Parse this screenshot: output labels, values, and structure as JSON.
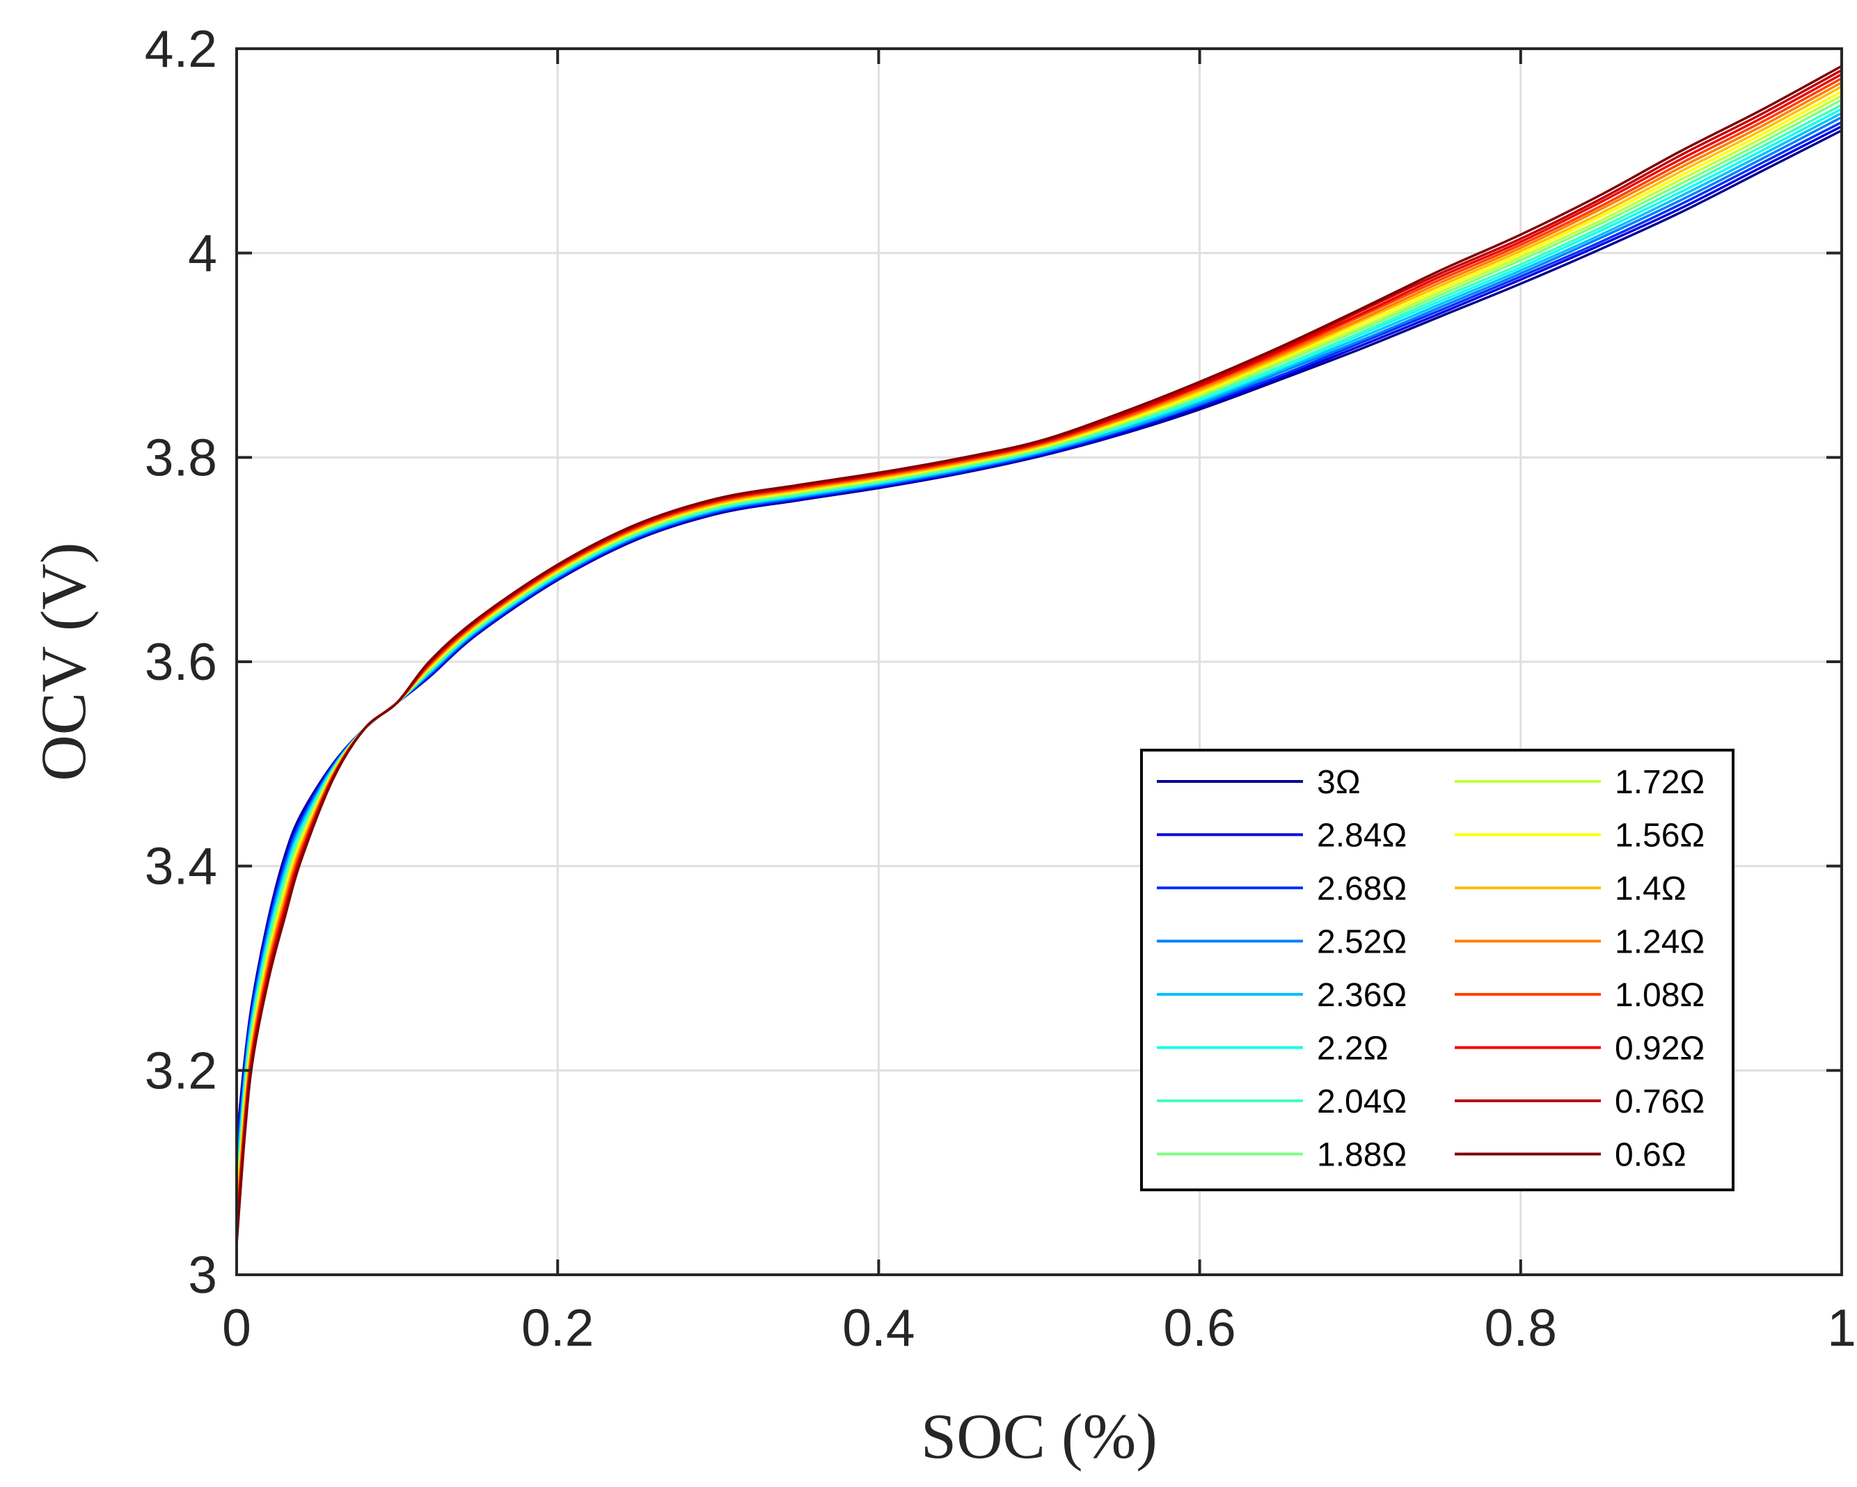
{
  "chart_data": {
    "type": "line",
    "xlabel": "SOC (%)",
    "ylabel": "OCV (V)",
    "xlim": [
      0,
      1
    ],
    "ylim": [
      3,
      4.2
    ],
    "grid": true,
    "legend_position": "bottom-right",
    "legend_columns": 2,
    "x_ticks": [
      0,
      0.2,
      0.4,
      0.6,
      0.8,
      1
    ],
    "x_tick_labels": [
      "0",
      "0.2",
      "0.4",
      "0.6",
      "0.8",
      "1"
    ],
    "y_ticks": [
      3,
      3.2,
      3.4,
      3.6,
      3.8,
      4,
      4.2
    ],
    "y_tick_labels": [
      "3",
      "3.2",
      "3.4",
      "3.6",
      "3.8",
      "4",
      "4.2"
    ],
    "x": [
      0,
      0.005,
      0.01,
      0.02,
      0.03,
      0.04,
      0.06,
      0.08,
      0.1,
      0.12,
      0.15,
      0.2,
      0.25,
      0.3,
      0.35,
      0.4,
      0.45,
      0.5,
      0.55,
      0.6,
      0.65,
      0.7,
      0.75,
      0.8,
      0.85,
      0.9,
      0.95,
      1.0
    ],
    "series": [
      {
        "name": "3Ω",
        "color": "#00008F",
        "values": [
          3.13,
          3.21,
          3.27,
          3.35,
          3.41,
          3.45,
          3.5,
          3.535,
          3.56,
          3.585,
          3.627,
          3.68,
          3.72,
          3.745,
          3.758,
          3.77,
          3.784,
          3.801,
          3.822,
          3.847,
          3.876,
          3.906,
          3.938,
          3.97,
          4.004,
          4.04,
          4.08,
          4.12
        ]
      },
      {
        "name": "2.84Ω",
        "color": "#0000DF",
        "values": [
          3.12,
          3.205,
          3.266,
          3.346,
          3.406,
          3.447,
          3.499,
          3.535,
          3.56,
          3.586,
          3.628,
          3.681,
          3.721,
          3.746,
          3.759,
          3.771,
          3.785,
          3.802,
          3.823,
          3.849,
          3.878,
          3.909,
          3.941,
          3.974,
          4.008,
          4.044,
          4.084,
          4.124
        ]
      },
      {
        "name": "2.68Ω",
        "color": "#0030FF",
        "values": [
          3.11,
          3.2,
          3.262,
          3.342,
          3.402,
          3.444,
          3.498,
          3.535,
          3.56,
          3.587,
          3.629,
          3.682,
          3.722,
          3.747,
          3.76,
          3.772,
          3.786,
          3.803,
          3.825,
          3.851,
          3.88,
          3.912,
          3.944,
          3.977,
          4.011,
          4.048,
          4.088,
          4.128
        ]
      },
      {
        "name": "2.52Ω",
        "color": "#0080FF",
        "values": [
          3.1,
          3.195,
          3.258,
          3.338,
          3.398,
          3.441,
          3.497,
          3.535,
          3.56,
          3.588,
          3.63,
          3.683,
          3.723,
          3.748,
          3.761,
          3.773,
          3.787,
          3.804,
          3.826,
          3.852,
          3.883,
          3.914,
          3.947,
          3.98,
          4.015,
          4.052,
          4.092,
          4.133
        ]
      },
      {
        "name": "2.36Ω",
        "color": "#00BFFF",
        "values": [
          3.09,
          3.19,
          3.254,
          3.334,
          3.394,
          3.438,
          3.496,
          3.535,
          3.56,
          3.589,
          3.631,
          3.684,
          3.724,
          3.749,
          3.762,
          3.774,
          3.788,
          3.805,
          3.827,
          3.854,
          3.885,
          3.917,
          3.95,
          3.983,
          4.018,
          4.056,
          4.096,
          4.137
        ]
      },
      {
        "name": "2.2Ω",
        "color": "#10FFEF",
        "values": [
          3.08,
          3.185,
          3.25,
          3.33,
          3.39,
          3.435,
          3.495,
          3.535,
          3.56,
          3.59,
          3.632,
          3.685,
          3.725,
          3.75,
          3.763,
          3.775,
          3.789,
          3.806,
          3.829,
          3.856,
          3.887,
          3.92,
          3.953,
          3.986,
          4.022,
          4.06,
          4.1,
          4.141
        ]
      },
      {
        "name": "2.04Ω",
        "color": "#40FFBF",
        "values": [
          3.075,
          3.18,
          3.246,
          3.326,
          3.386,
          3.432,
          3.494,
          3.535,
          3.56,
          3.591,
          3.633,
          3.686,
          3.726,
          3.751,
          3.764,
          3.776,
          3.79,
          3.807,
          3.83,
          3.858,
          3.889,
          3.922,
          3.956,
          3.989,
          4.025,
          4.064,
          4.104,
          4.145
        ]
      },
      {
        "name": "1.88Ω",
        "color": "#80FF80",
        "values": [
          3.07,
          3.175,
          3.242,
          3.322,
          3.382,
          3.429,
          3.493,
          3.535,
          3.56,
          3.592,
          3.634,
          3.687,
          3.727,
          3.752,
          3.765,
          3.777,
          3.791,
          3.808,
          3.832,
          3.86,
          3.892,
          3.925,
          3.959,
          3.993,
          4.029,
          4.068,
          4.108,
          4.15
        ]
      },
      {
        "name": "1.72Ω",
        "color": "#BFFF40",
        "values": [
          3.065,
          3.17,
          3.238,
          3.318,
          3.378,
          3.426,
          3.492,
          3.535,
          3.56,
          3.593,
          3.635,
          3.688,
          3.728,
          3.753,
          3.766,
          3.778,
          3.792,
          3.809,
          3.833,
          3.861,
          3.894,
          3.927,
          3.962,
          3.996,
          4.032,
          4.072,
          4.112,
          4.154
        ]
      },
      {
        "name": "1.56Ω",
        "color": "#FFFF00",
        "values": [
          3.06,
          3.165,
          3.234,
          3.314,
          3.374,
          3.423,
          3.491,
          3.535,
          3.56,
          3.594,
          3.636,
          3.689,
          3.729,
          3.754,
          3.767,
          3.779,
          3.793,
          3.81,
          3.834,
          3.863,
          3.896,
          3.93,
          3.965,
          3.999,
          4.036,
          4.076,
          4.116,
          4.158
        ]
      },
      {
        "name": "1.4Ω",
        "color": "#FFBF00",
        "values": [
          3.055,
          3.16,
          3.23,
          3.31,
          3.37,
          3.42,
          3.49,
          3.535,
          3.56,
          3.595,
          3.637,
          3.69,
          3.73,
          3.755,
          3.768,
          3.78,
          3.794,
          3.811,
          3.836,
          3.865,
          3.898,
          3.933,
          3.968,
          4.002,
          4.039,
          4.08,
          4.12,
          4.163
        ]
      },
      {
        "name": "1.24Ω",
        "color": "#FF8000",
        "values": [
          3.05,
          3.155,
          3.226,
          3.306,
          3.366,
          3.417,
          3.489,
          3.535,
          3.56,
          3.596,
          3.638,
          3.691,
          3.731,
          3.756,
          3.769,
          3.781,
          3.795,
          3.812,
          3.837,
          3.867,
          3.9,
          3.935,
          3.971,
          4.005,
          4.043,
          4.084,
          4.124,
          4.167
        ]
      },
      {
        "name": "1.08Ω",
        "color": "#FF4000",
        "values": [
          3.045,
          3.15,
          3.222,
          3.302,
          3.362,
          3.414,
          3.488,
          3.535,
          3.56,
          3.597,
          3.639,
          3.692,
          3.732,
          3.757,
          3.77,
          3.782,
          3.796,
          3.813,
          3.838,
          3.869,
          3.902,
          3.938,
          3.974,
          4.008,
          4.046,
          4.088,
          4.128,
          4.171
        ]
      },
      {
        "name": "0.92Ω",
        "color": "#EF0000",
        "values": [
          3.04,
          3.145,
          3.218,
          3.298,
          3.358,
          3.411,
          3.487,
          3.535,
          3.56,
          3.598,
          3.64,
          3.693,
          3.733,
          3.758,
          3.771,
          3.783,
          3.797,
          3.814,
          3.84,
          3.87,
          3.904,
          3.94,
          3.977,
          4.011,
          4.05,
          4.092,
          4.132,
          4.175
        ]
      },
      {
        "name": "0.76Ω",
        "color": "#BF0000",
        "values": [
          3.035,
          3.14,
          3.214,
          3.294,
          3.354,
          3.408,
          3.486,
          3.535,
          3.56,
          3.599,
          3.641,
          3.694,
          3.734,
          3.759,
          3.772,
          3.784,
          3.798,
          3.815,
          3.841,
          3.872,
          3.906,
          3.943,
          3.98,
          4.014,
          4.053,
          4.096,
          4.136,
          4.179
        ]
      },
      {
        "name": "0.6Ω",
        "color": "#800000",
        "values": [
          3.03,
          3.135,
          3.21,
          3.29,
          3.35,
          3.405,
          3.485,
          3.535,
          3.56,
          3.6,
          3.642,
          3.695,
          3.735,
          3.76,
          3.773,
          3.785,
          3.799,
          3.816,
          3.843,
          3.874,
          3.908,
          3.945,
          3.983,
          4.018,
          4.057,
          4.1,
          4.14,
          4.183
        ]
      }
    ]
  }
}
